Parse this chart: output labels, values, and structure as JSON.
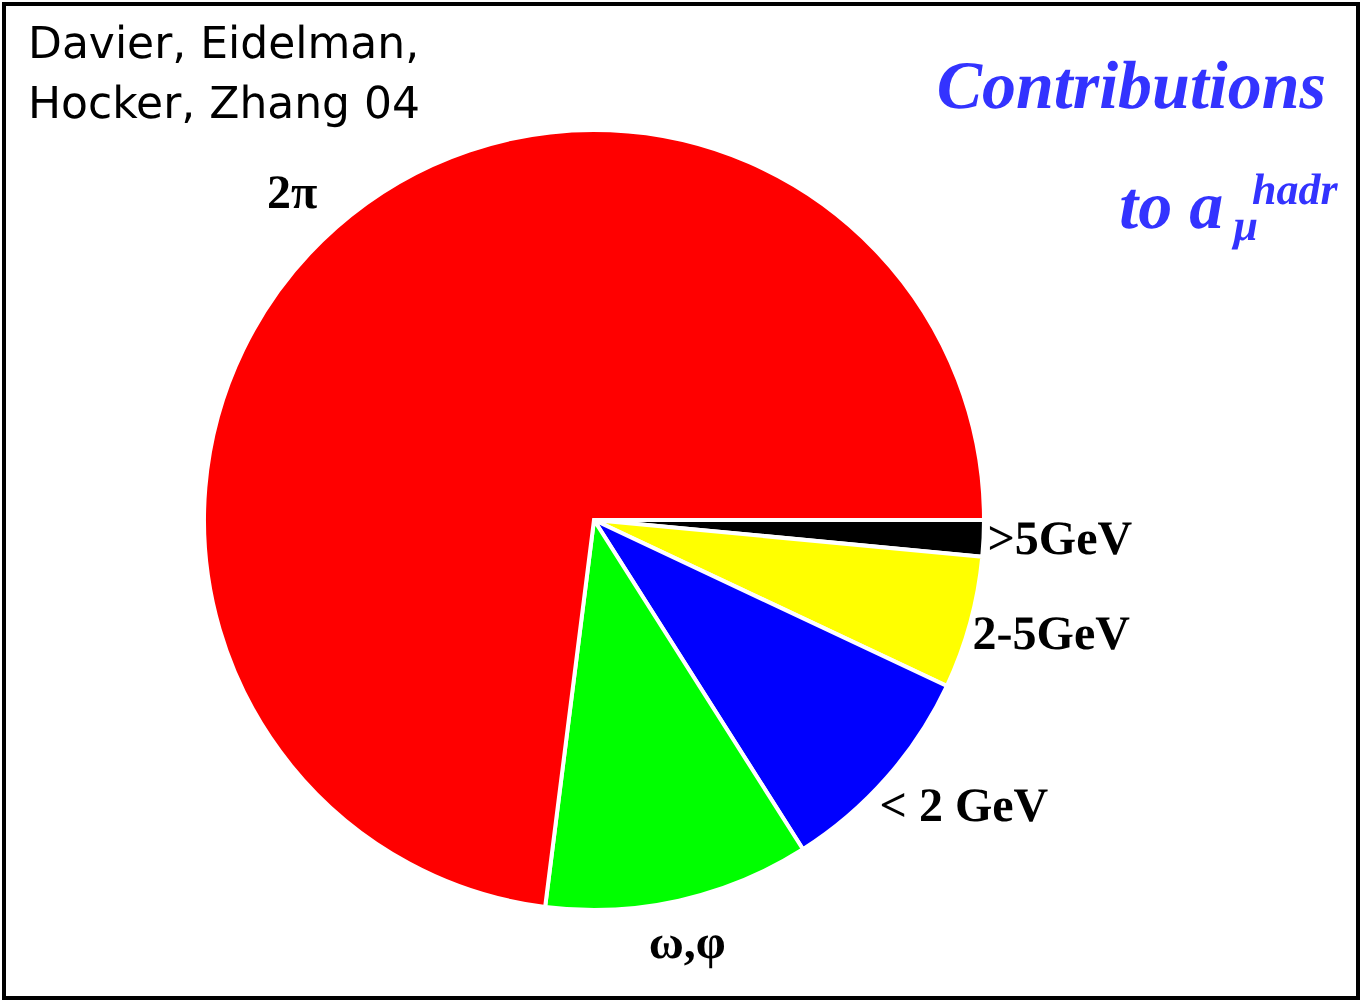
{
  "chart_data": {
    "type": "pie",
    "title": "Contributions to a$_{μ}$$^{hadr}$",
    "categories": [
      ">5GeV",
      "2-5GeV",
      "< 2 GeV",
      "ω,φ",
      "2π"
    ],
    "values": [
      1.5,
      5.5,
      9,
      11,
      73
    ],
    "colors": [
      "#000000",
      "#ffff00",
      "#0000ff",
      "#00ff00",
      "#ff0000"
    ],
    "annotations": [
      "Davier, Eidelman, Hocker, Zhang 04"
    ]
  }
}
